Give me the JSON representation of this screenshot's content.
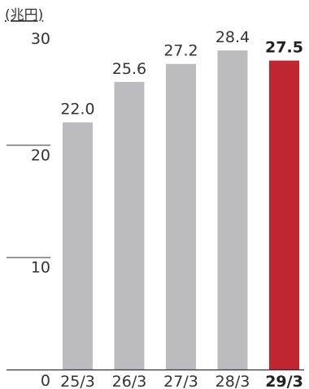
{
  "chart_data": {
    "type": "bar",
    "unit_label": "(兆円)",
    "categories": [
      "25/3",
      "26/3",
      "27/3",
      "28/3",
      "29/3"
    ],
    "values": [
      22.0,
      25.6,
      27.2,
      28.4,
      27.5
    ],
    "value_labels": [
      "22.0",
      "25.6",
      "27.2",
      "28.4",
      "27.5"
    ],
    "highlight_index": 4,
    "ylim": [
      0,
      30
    ],
    "yticks": [
      0,
      10,
      20,
      30
    ],
    "ytick_labels": [
      "0",
      "10",
      "20",
      "30"
    ],
    "grid": false,
    "colors": {
      "bar": "#bcbcbe",
      "highlight": "#c0262f",
      "axis": "#333333"
    }
  }
}
